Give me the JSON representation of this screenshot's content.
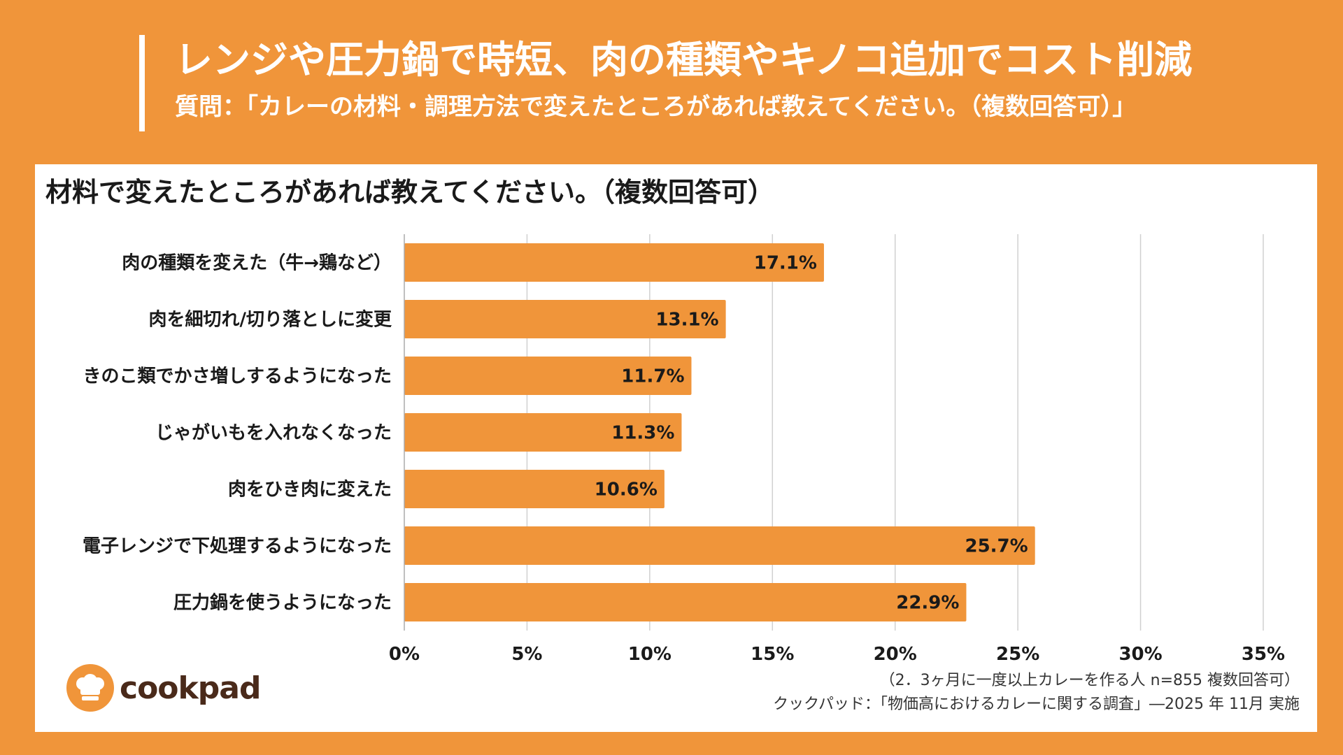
{
  "header": {
    "title": "レンジや圧力鍋で時短、肉の種類やキノコ追加でコスト削減",
    "subtitle": "質問：「カレーの材料・調理方法で変えたところがあれば教えてください。（複数回答可）」"
  },
  "colors": {
    "background": "#F0953A",
    "bar": "#F0953A",
    "panel": "#FFFFFF",
    "gridline": "#D0D0D0",
    "logo_text": "#4A2A1A"
  },
  "chart_data": {
    "type": "bar",
    "orientation": "horizontal",
    "title": "材料で変えたところがあれば教えてください。（複数回答可）",
    "categories": [
      "肉の種類を変えた（牛→鶏など）",
      "肉を細切れ/切り落としに変更",
      "きのこ類でかさ増しするようになった",
      "じゃがいもを入れなくなった",
      "肉をひき肉に変えた",
      "電子レンジで下処理するようになった",
      "圧力鍋を使うようになった"
    ],
    "values": [
      17.1,
      13.1,
      11.7,
      11.3,
      10.6,
      25.7,
      22.9
    ],
    "value_labels": [
      "17.1%",
      "13.1%",
      "11.7%",
      "11.3%",
      "10.6%",
      "25.7%",
      "22.9%"
    ],
    "xlim": [
      0,
      35
    ],
    "xticks": [
      0,
      5,
      10,
      15,
      20,
      25,
      30,
      35
    ],
    "xtick_labels": [
      "0%",
      "5%",
      "10%",
      "15%",
      "20%",
      "25%",
      "30%",
      "35%"
    ],
    "xlabel": "",
    "ylabel": "",
    "grid": true
  },
  "logo": {
    "name": "cookpad",
    "icon": "chef-hat-icon"
  },
  "footnotes": {
    "sample": "（2．3ヶ月に一度以上カレーを作る人 n=855 複数回答可）",
    "source": "クックパッド：「物価高におけるカレーに関する調査」―2025 年 11月 実施"
  }
}
